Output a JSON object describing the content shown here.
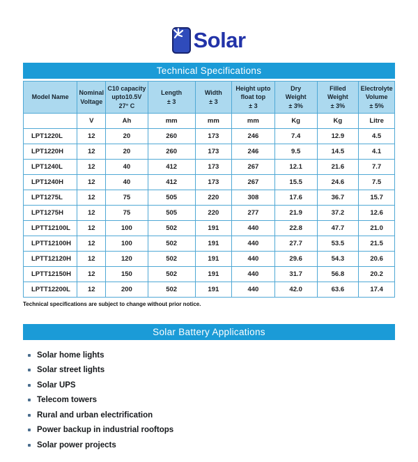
{
  "logo": {
    "text": "Solar",
    "icon": "solar-panel-sun-icon",
    "text_color": "#2233a8",
    "icon_fill": "#2f4bbb",
    "icon_border": "#18246e"
  },
  "colors": {
    "banner_bg": "#1b9bd7",
    "table_header_bg": "#acd9ef",
    "table_border": "#4fa8d5",
    "bullet": "#4b6e8e"
  },
  "spec_section": {
    "title": "Technical Specifications",
    "note": "Technical specifications are subject to change without prior notice.",
    "table": {
      "header_lines": [
        [
          "Model Name"
        ],
        [
          "Nominal",
          "Voltage"
        ],
        [
          "C10 capacity",
          "upto10.5V",
          "27° C"
        ],
        [
          "Length",
          "± 3"
        ],
        [
          "Width",
          "± 3"
        ],
        [
          "Height upto",
          "float top",
          "± 3"
        ],
        [
          "Dry",
          "Weight",
          "± 3%"
        ],
        [
          "Filled",
          "Weight",
          "± 3%"
        ],
        [
          "Electrolyte",
          "Volume",
          "± 5%"
        ]
      ],
      "units": [
        "",
        "V",
        "Ah",
        "mm",
        "mm",
        "mm",
        "Kg",
        "Kg",
        "Litre"
      ],
      "rows": [
        [
          "LPT1220L",
          "12",
          "20",
          "260",
          "173",
          "246",
          "7.4",
          "12.9",
          "4.5"
        ],
        [
          "LPT1220H",
          "12",
          "20",
          "260",
          "173",
          "246",
          "9.5",
          "14.5",
          "4.1"
        ],
        [
          "LPT1240L",
          "12",
          "40",
          "412",
          "173",
          "267",
          "12.1",
          "21.6",
          "7.7"
        ],
        [
          "LPT1240H",
          "12",
          "40",
          "412",
          "173",
          "267",
          "15.5",
          "24.6",
          "7.5"
        ],
        [
          "LPT1275L",
          "12",
          "75",
          "505",
          "220",
          "308",
          "17.6",
          "36.7",
          "15.7"
        ],
        [
          "LPT1275H",
          "12",
          "75",
          "505",
          "220",
          "277",
          "21.9",
          "37.2",
          "12.6"
        ],
        [
          "LPTT12100L",
          "12",
          "100",
          "502",
          "191",
          "440",
          "22.8",
          "47.7",
          "21.0"
        ],
        [
          "LPTT12100H",
          "12",
          "100",
          "502",
          "191",
          "440",
          "27.7",
          "53.5",
          "21.5"
        ],
        [
          "LPTT12120H",
          "12",
          "120",
          "502",
          "191",
          "440",
          "29.6",
          "54.3",
          "20.6"
        ],
        [
          "LPTT12150H",
          "12",
          "150",
          "502",
          "191",
          "440",
          "31.7",
          "56.8",
          "20.2"
        ],
        [
          "LPTT12200L",
          "12",
          "200",
          "502",
          "191",
          "440",
          "42.0",
          "63.6",
          "17.4"
        ]
      ]
    }
  },
  "applications_section": {
    "title": "Solar Battery Applications",
    "items": [
      "Solar home lights",
      "Solar street lights",
      "Solar UPS",
      "Telecom towers",
      "Rural and urban electrification",
      "Power backup in industrial rooftops",
      "Solar power projects"
    ]
  }
}
